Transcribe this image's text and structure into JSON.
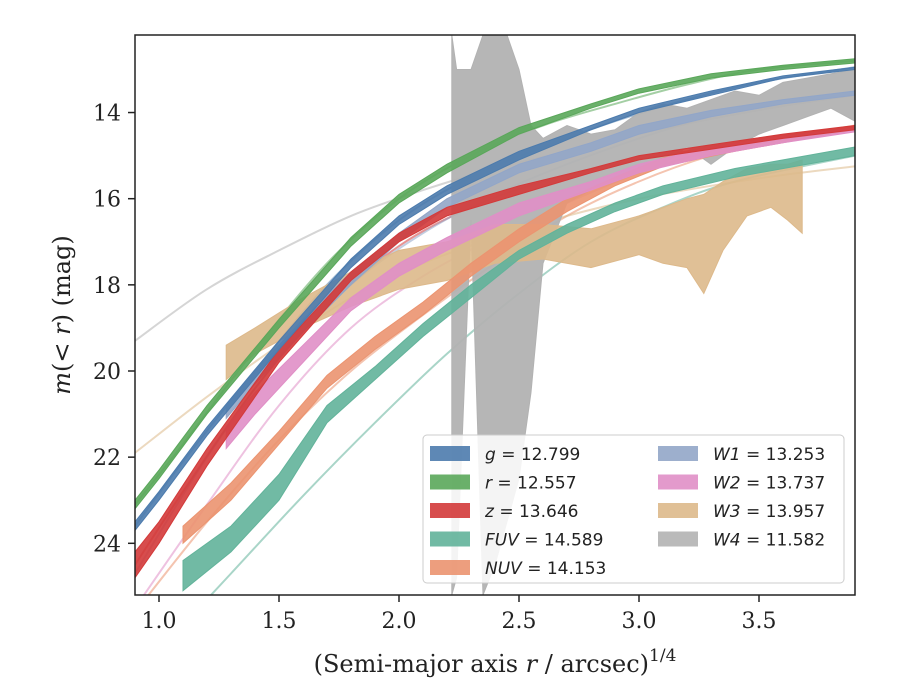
{
  "chart_data": {
    "type": "area",
    "xlabel_main": "(Semi-major axis ",
    "xlabel_var": "r",
    "xlabel_tail": " / arcsec)",
    "xlabel_sup": "1/4",
    "ylabel_main": "m",
    "ylabel_paren": "(< ",
    "ylabel_var": "r",
    "ylabel_tail": ") (mag)",
    "xlim": [
      0.9,
      3.9
    ],
    "ylim": [
      25.2,
      12.2
    ],
    "y_inverted": true,
    "x_ticks": [
      1.0,
      1.5,
      2.0,
      2.5,
      3.0,
      3.5
    ],
    "x_tick_labels": [
      "1.0",
      "1.5",
      "2.0",
      "2.5",
      "3.0",
      "3.5"
    ],
    "y_ticks": [
      14,
      16,
      18,
      20,
      22,
      24
    ],
    "y_tick_labels": [
      "14",
      "16",
      "18",
      "20",
      "22",
      "24"
    ],
    "legend_position": "lower-right",
    "series": [
      {
        "name": "g",
        "total": "12.799",
        "color": "#4c7bad",
        "band_x": [
          0.9,
          1.0,
          1.2,
          1.5,
          1.8,
          2.0,
          2.2,
          2.5,
          2.8,
          3.0,
          3.3,
          3.6,
          3.9
        ],
        "band_low": [
          23.7,
          23.0,
          21.5,
          19.5,
          17.6,
          16.6,
          15.9,
          15.1,
          14.4,
          14.0,
          13.6,
          13.2,
          13.0
        ],
        "band_high": [
          23.5,
          22.8,
          21.3,
          19.3,
          17.4,
          16.4,
          15.7,
          14.9,
          14.3,
          13.9,
          13.5,
          13.15,
          12.95
        ],
        "fit_x": [
          0.9,
          1.1,
          1.4,
          1.7,
          2.0,
          2.3,
          2.6,
          2.9,
          3.2,
          3.5,
          3.9
        ],
        "fit_y": [
          23.6,
          22.1,
          20.0,
          18.0,
          16.5,
          15.5,
          14.8,
          14.2,
          13.7,
          13.3,
          12.95
        ]
      },
      {
        "name": "r",
        "total": "12.557",
        "color": "#5aa75a",
        "band_x": [
          0.9,
          1.0,
          1.2,
          1.5,
          1.8,
          2.0,
          2.2,
          2.5,
          2.8,
          3.0,
          3.3,
          3.6,
          3.9
        ],
        "band_low": [
          23.2,
          22.5,
          21.0,
          19.0,
          17.1,
          16.1,
          15.4,
          14.5,
          13.9,
          13.55,
          13.2,
          13.0,
          12.85
        ],
        "band_high": [
          23.0,
          22.3,
          20.8,
          18.8,
          16.9,
          15.9,
          15.2,
          14.35,
          13.8,
          13.45,
          13.1,
          12.9,
          12.75
        ],
        "fit_x": [
          0.9,
          1.1,
          1.4,
          1.7,
          2.0,
          2.3,
          2.6,
          2.9,
          3.2,
          3.5,
          3.9
        ],
        "fit_y": [
          23.1,
          21.7,
          19.5,
          17.5,
          16.0,
          15.0,
          14.3,
          13.8,
          13.35,
          13.0,
          12.8
        ]
      },
      {
        "name": "z",
        "total": "13.646",
        "color": "#d33a3a",
        "band_x": [
          0.9,
          1.0,
          1.2,
          1.5,
          1.8,
          2.0,
          2.2,
          2.5,
          2.8,
          3.0,
          3.3,
          3.6,
          3.9
        ],
        "band_low": [
          24.8,
          24.0,
          22.2,
          19.8,
          17.9,
          17.0,
          16.4,
          15.9,
          15.4,
          15.1,
          14.85,
          14.6,
          14.4
        ],
        "band_high": [
          24.2,
          23.5,
          21.8,
          19.5,
          17.7,
          16.8,
          16.2,
          15.7,
          15.3,
          15.0,
          14.75,
          14.5,
          14.3
        ],
        "fit_x": [
          0.9,
          1.1,
          1.4,
          1.7,
          2.0,
          2.3,
          2.6,
          2.9,
          3.2,
          3.5,
          3.9
        ],
        "fit_y": [
          24.5,
          22.8,
          20.4,
          18.5,
          17.1,
          16.2,
          15.6,
          15.2,
          14.9,
          14.6,
          14.35
        ]
      },
      {
        "name": "FUV",
        "total": "14.589",
        "color": "#62b39a",
        "band_x": [
          1.1,
          1.3,
          1.5,
          1.7,
          1.9,
          2.1,
          2.3,
          2.5,
          2.7,
          2.9,
          3.1,
          3.4,
          3.9
        ],
        "band_low": [
          25.1,
          24.2,
          23.0,
          21.2,
          20.2,
          19.2,
          18.3,
          17.4,
          16.8,
          16.3,
          15.9,
          15.5,
          15.0
        ],
        "band_high": [
          24.4,
          23.6,
          22.4,
          20.8,
          19.9,
          18.9,
          18.0,
          17.2,
          16.6,
          16.1,
          15.7,
          15.3,
          14.8
        ],
        "fit_x": [
          1.0,
          1.3,
          1.6,
          1.9,
          2.2,
          2.5,
          2.8,
          3.1,
          3.4,
          3.9
        ],
        "fit_y": [
          26.5,
          24.7,
          22.9,
          21.2,
          19.6,
          18.2,
          17.0,
          16.2,
          15.6,
          15.0
        ]
      },
      {
        "name": "NUV",
        "total": "14.153",
        "color": "#eb9470",
        "band_x": [
          1.1,
          1.3,
          1.5,
          1.7,
          1.9,
          2.1,
          2.3,
          2.5,
          2.7,
          2.9,
          3.1,
          3.4,
          3.9
        ],
        "band_low": [
          24.0,
          23.0,
          21.7,
          20.4,
          19.5,
          18.7,
          17.8,
          17.0,
          16.3,
          15.7,
          15.25,
          14.9,
          14.4
        ],
        "band_high": [
          23.6,
          22.6,
          21.4,
          20.1,
          19.2,
          18.4,
          17.5,
          16.7,
          16.0,
          15.5,
          15.05,
          14.7,
          14.3
        ],
        "fit_x": [
          0.9,
          1.2,
          1.5,
          1.8,
          2.1,
          2.4,
          2.7,
          3.0,
          3.3,
          3.6,
          3.9
        ],
        "fit_y": [
          25.6,
          23.5,
          21.6,
          20.0,
          18.7,
          17.5,
          16.4,
          15.6,
          15.0,
          14.6,
          14.3
        ]
      },
      {
        "name": "W1",
        "total": "13.253",
        "color": "#92a6c8",
        "band_x": [
          1.28,
          1.4,
          1.6,
          1.8,
          2.0,
          2.2,
          2.5,
          2.8,
          3.0,
          3.3,
          3.6,
          3.9
        ],
        "band_low": [
          21.1,
          20.3,
          19.1,
          18.0,
          17.0,
          16.2,
          15.4,
          14.9,
          14.5,
          14.1,
          13.8,
          13.6
        ],
        "band_high": [
          20.8,
          20.0,
          18.8,
          17.7,
          16.8,
          16.0,
          15.2,
          14.7,
          14.3,
          13.95,
          13.7,
          13.5
        ],
        "fit_x": [
          0.9,
          1.2,
          1.5,
          1.8,
          2.1,
          2.4,
          2.7,
          3.0,
          3.3,
          3.6,
          3.9
        ],
        "fit_y": [
          24.7,
          22.0,
          19.7,
          18.0,
          16.8,
          15.9,
          15.2,
          14.6,
          14.1,
          13.8,
          13.55
        ]
      },
      {
        "name": "W2",
        "total": "13.737",
        "color": "#e08fc6",
        "band_x": [
          1.28,
          1.4,
          1.6,
          1.8,
          2.0,
          2.2,
          2.5,
          2.8,
          3.0,
          3.3,
          3.6,
          3.9
        ],
        "band_low": [
          21.8,
          21.0,
          19.8,
          18.6,
          17.8,
          17.2,
          16.4,
          15.8,
          15.4,
          15.0,
          14.7,
          14.45
        ],
        "band_high": [
          21.3,
          20.5,
          19.4,
          18.3,
          17.5,
          16.9,
          16.1,
          15.6,
          15.2,
          14.8,
          14.55,
          14.35
        ],
        "fit_x": [
          0.9,
          1.2,
          1.5,
          1.8,
          2.1,
          2.4,
          2.7,
          3.0,
          3.3,
          3.6,
          3.9
        ],
        "fit_y": [
          25.5,
          23.1,
          20.8,
          19.0,
          17.8,
          16.9,
          16.1,
          15.4,
          14.9,
          14.6,
          14.4
        ]
      },
      {
        "name": "W3",
        "total": "13.957",
        "color": "#ddb98b",
        "band_x": [
          1.28,
          1.4,
          1.6,
          1.8,
          2.0,
          2.2,
          2.4,
          2.6,
          2.8,
          3.0,
          3.1,
          3.2,
          3.27,
          3.35,
          3.45,
          3.55,
          3.62,
          3.68
        ],
        "band_low": [
          20.2,
          19.6,
          19.0,
          18.5,
          18.1,
          17.9,
          17.5,
          17.4,
          17.6,
          17.3,
          17.5,
          17.6,
          18.2,
          17.2,
          16.4,
          16.2,
          16.5,
          16.8
        ],
        "band_high": [
          19.4,
          19.0,
          18.3,
          17.7,
          17.2,
          17.0,
          16.6,
          16.6,
          16.7,
          16.4,
          16.2,
          16.0,
          15.9,
          15.6,
          15.3,
          15.2,
          15.2,
          15.1
        ],
        "fit_x": [
          0.9,
          1.2,
          1.5,
          1.8,
          2.1,
          2.4,
          2.7,
          3.0,
          3.3,
          3.6,
          3.9
        ],
        "fit_y": [
          21.9,
          20.6,
          19.4,
          18.3,
          17.5,
          16.9,
          16.4,
          16.0,
          15.7,
          15.45,
          15.25
        ]
      },
      {
        "name": "W4",
        "total": "11.582",
        "color": "#b2b2b2",
        "band_x": [
          2.22,
          2.24,
          2.3,
          2.35,
          2.4,
          2.45,
          2.5,
          2.55,
          2.6,
          2.7,
          2.8,
          2.9,
          3.0,
          3.1,
          3.2,
          3.3,
          3.4,
          3.5,
          3.6,
          3.7,
          3.8,
          3.9
        ],
        "band_low": [
          25.2,
          24.8,
          16.5,
          25.2,
          24.5,
          23.5,
          22.5,
          20.5,
          17.5,
          16.1,
          15.8,
          15.6,
          15.4,
          15.2,
          14.8,
          15.2,
          14.8,
          14.5,
          14.3,
          14.1,
          13.9,
          14.2
        ],
        "band_high": [
          12.2,
          13.0,
          13.0,
          12.2,
          12.2,
          12.2,
          13.0,
          14.3,
          14.6,
          14.3,
          14.5,
          14.4,
          14.0,
          13.8,
          13.9,
          13.7,
          13.5,
          13.6,
          13.3,
          13.2,
          13.1,
          13.0
        ],
        "fit_x": [
          0.9,
          1.2,
          1.5,
          1.8,
          2.1,
          2.4,
          2.7,
          3.0,
          3.3,
          3.6,
          3.9
        ],
        "fit_y": [
          19.3,
          18.1,
          17.2,
          16.4,
          15.8,
          15.3,
          14.9,
          14.5,
          14.15,
          13.85,
          13.6
        ]
      }
    ]
  }
}
